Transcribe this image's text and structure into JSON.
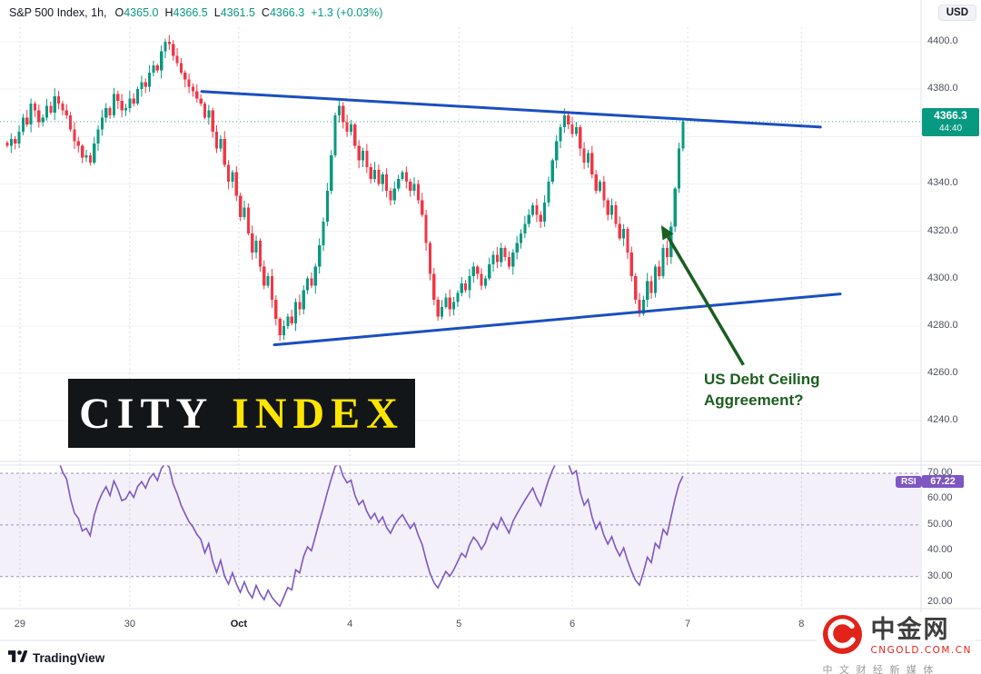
{
  "header": {
    "symbol": "S&P 500 Index, 1h,",
    "ohlc": {
      "o_label": "O",
      "o": "4365.0",
      "h_label": "H",
      "h": "4366.5",
      "l_label": "L",
      "l": "4361.5",
      "c_label": "C",
      "c": "4366.3",
      "change": "+1.3 (+0.03%)"
    },
    "currency": "USD"
  },
  "colors": {
    "up": "#089981",
    "down": "#f23645",
    "trendline": "#1a4fc0",
    "arrow": "#1b5e20",
    "rsi": "#7e57c2",
    "axis_text": "#4a4e59",
    "city_yellow": "#ffe600",
    "city_bg": "#121619",
    "cngold_red": "#e2231a",
    "tv_dark": "#131722"
  },
  "price_axis": {
    "labels": [
      "4400.0",
      "4380.0",
      "4340.0",
      "4320.0",
      "4300.0",
      "4280.0",
      "4260.0",
      "4240.0"
    ],
    "values": [
      4400,
      4380,
      4340,
      4320,
      4300,
      4280,
      4260,
      4240
    ],
    "grid_values": [
      4400,
      4380,
      4360,
      4340,
      4320,
      4300,
      4280,
      4260,
      4240
    ],
    "current": {
      "price": "4366.3",
      "countdown": "44:40",
      "value": 4366.3
    }
  },
  "time_axis": {
    "labels": [
      {
        "text": "29",
        "i": 3.2,
        "major": false
      },
      {
        "text": "30",
        "i": 31,
        "major": false
      },
      {
        "text": "Oct",
        "i": 58.6,
        "major": true
      },
      {
        "text": "4",
        "i": 86.7,
        "major": false
      },
      {
        "text": "5",
        "i": 114.3,
        "major": false
      },
      {
        "text": "6",
        "i": 143,
        "major": false
      },
      {
        "text": "7",
        "i": 172.2,
        "major": false
      },
      {
        "text": "8",
        "i": 201,
        "major": false
      }
    ]
  },
  "chart_data": {
    "type": "candlestick",
    "title": "S&P 500 Index",
    "interval": "1h",
    "ylim": [
      4240,
      4400
    ],
    "ohlc_last": {
      "open": 4365.0,
      "high": 4366.5,
      "low": 4361.5,
      "close": 4366.3,
      "change": 1.3,
      "change_pct": 0.03
    },
    "closes": [
      4356,
      4359,
      4357,
      4362,
      4368,
      4365,
      4374,
      4371,
      4366,
      4368,
      4373,
      4370,
      4377,
      4374,
      4371,
      4369,
      4363,
      4358,
      4356,
      4351,
      4352,
      4349,
      4357,
      4363,
      4368,
      4372,
      4369,
      4378,
      4375,
      4371,
      4372,
      4376,
      4374,
      4380,
      4383,
      4381,
      4387,
      4390,
      4388,
      4396,
      4400,
      4399,
      4394,
      4391,
      4387,
      4384,
      4381,
      4379,
      4376,
      4374,
      4368,
      4371,
      4362,
      4355,
      4359,
      4348,
      4341,
      4345,
      4335,
      4326,
      4330,
      4319,
      4311,
      4316,
      4305,
      4297,
      4301,
      4291,
      4283,
      4276,
      4280,
      4284,
      4281,
      4290,
      4287,
      4295,
      4300,
      4297,
      4305,
      4314,
      4324,
      4337,
      4352,
      4369,
      4373,
      4366,
      4362,
      4365,
      4356,
      4350,
      4354,
      4347,
      4342,
      4346,
      4340,
      4344,
      4337,
      4333,
      4338,
      4342,
      4345,
      4341,
      4337,
      4340,
      4333,
      4327,
      4315,
      4302,
      4291,
      4284,
      4288,
      4292,
      4287,
      4290,
      4294,
      4298,
      4295,
      4301,
      4305,
      4302,
      4297,
      4300,
      4306,
      4310,
      4307,
      4313,
      4309,
      4305,
      4311,
      4315,
      4319,
      4323,
      4327,
      4331,
      4327,
      4324,
      4332,
      4341,
      4350,
      4358,
      4364,
      4369,
      4365,
      4361,
      4364,
      4355,
      4349,
      4353,
      4344,
      4337,
      4341,
      4333,
      4327,
      4331,
      4323,
      4317,
      4321,
      4311,
      4301,
      4291,
      4285,
      4291,
      4299,
      4294,
      4305,
      4301,
      4313,
      4309,
      4322,
      4338,
      4355,
      4366.3
    ],
    "trendlines": [
      {
        "from": {
          "i": 49.2,
          "price": 4379
        },
        "to": {
          "i": 205.8,
          "price": 4364
        }
      },
      {
        "from": {
          "i": 67.6,
          "price": 4272
        },
        "to": {
          "i": 210.8,
          "price": 4293.5
        }
      }
    ],
    "annotation": {
      "line1": "US Debt Ceiling",
      "line2": "Aggreement?",
      "arrow": {
        "tip": {
          "i": 165.5,
          "price": 4322.5
        },
        "tail": {
          "i": 186.3,
          "price": 4263.5
        }
      }
    },
    "rsi": {
      "label": "RSI",
      "value": "67.22",
      "period": 14,
      "levels": [
        70,
        50,
        30
      ],
      "axis_labels": [
        "70.00",
        "60.00",
        "50.00",
        "40.00",
        "30.00",
        "20.00"
      ],
      "axis_values": [
        70,
        60,
        50,
        40,
        30,
        20
      ]
    }
  },
  "logos": {
    "city_index": {
      "part1": "CITY",
      "part2": "INDEX"
    },
    "tradingview": {
      "text": "TradingView"
    },
    "cngold": {
      "name": "中金网",
      "domain": "CNGOLD.COM.CN",
      "tagline": "中 文 财 经 新 媒 体"
    }
  }
}
